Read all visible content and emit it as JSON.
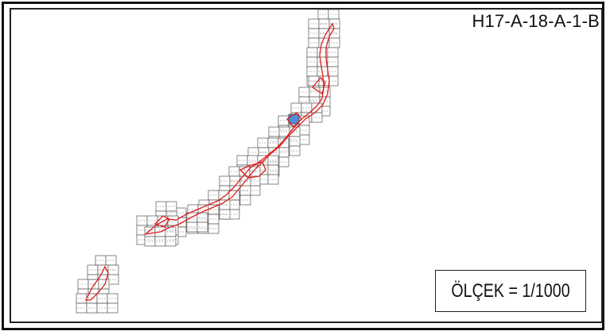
{
  "sheet": {
    "code": "H17-A-18-A-1-B",
    "scale_text": "ÖLÇEK = 1/1000"
  },
  "colors": {
    "frame": "#111111",
    "grid": "#555555",
    "boundary": "#e01b1b",
    "highlight": "#4a8fd8"
  },
  "icons": {
    "highlight_cell": "highlighted-parcel-cell"
  }
}
